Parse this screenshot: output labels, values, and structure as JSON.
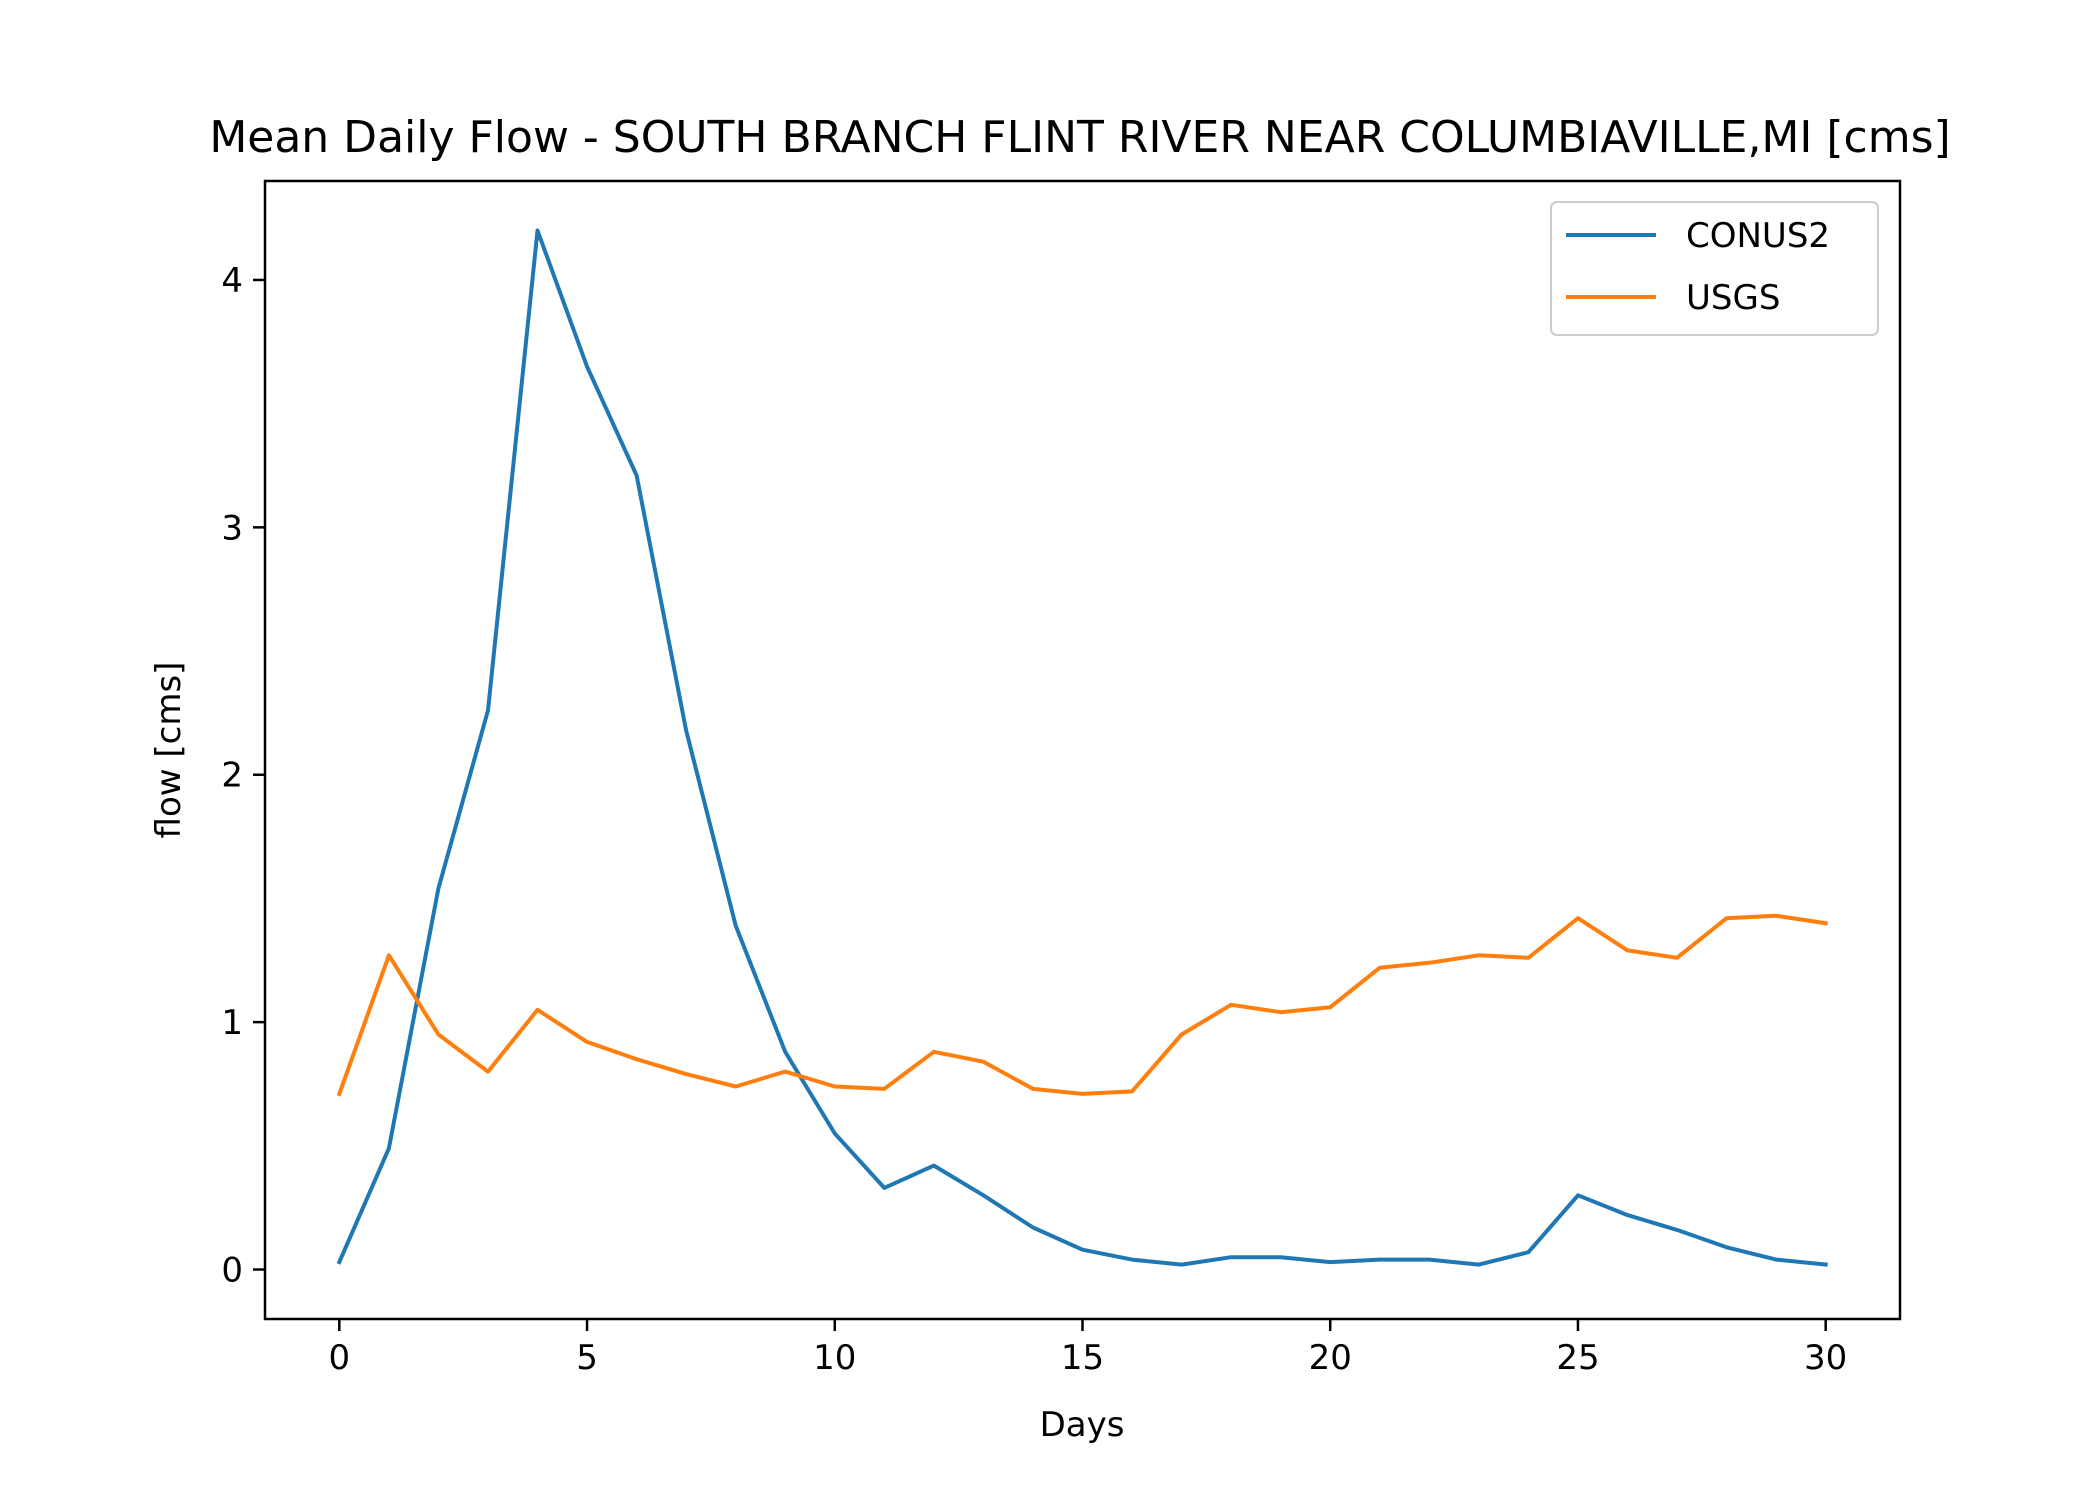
{
  "chart_data": {
    "type": "line",
    "title": "Mean Daily Flow - SOUTH BRANCH FLINT RIVER NEAR COLUMBIAVILLE,MI [cms]",
    "xlabel": "Days",
    "ylabel": "flow [cms]",
    "xlim": [
      -1.5,
      31.5
    ],
    "ylim": [
      -0.2,
      4.4
    ],
    "xticks": [
      0,
      5,
      10,
      15,
      20,
      25,
      30
    ],
    "yticks": [
      0,
      1,
      2,
      3,
      4
    ],
    "grid": false,
    "legend_position": "top-right",
    "x": [
      0,
      1,
      2,
      3,
      4,
      5,
      6,
      7,
      8,
      9,
      10,
      11,
      12,
      13,
      14,
      15,
      16,
      17,
      18,
      19,
      20,
      21,
      22,
      23,
      24,
      25,
      26,
      27,
      28,
      29,
      30
    ],
    "series": [
      {
        "name": "CONUS2",
        "color": "#1f77b4",
        "values": [
          0.03,
          0.49,
          1.54,
          2.26,
          4.2,
          3.65,
          3.21,
          2.18,
          1.39,
          0.88,
          0.55,
          0.33,
          0.42,
          0.3,
          0.17,
          0.08,
          0.04,
          0.02,
          0.05,
          0.05,
          0.03,
          0.04,
          0.04,
          0.02,
          0.07,
          0.3,
          0.22,
          0.16,
          0.09,
          0.04,
          0.02
        ]
      },
      {
        "name": "USGS",
        "color": "#ff7f0e",
        "values": [
          0.71,
          1.27,
          0.95,
          0.8,
          1.05,
          0.92,
          0.85,
          0.79,
          0.74,
          0.8,
          0.74,
          0.73,
          0.88,
          0.84,
          0.73,
          0.71,
          0.72,
          0.95,
          1.07,
          1.04,
          1.06,
          1.22,
          1.24,
          1.27,
          1.26,
          1.42,
          1.29,
          1.26,
          1.42,
          1.43,
          1.4
        ]
      }
    ]
  }
}
